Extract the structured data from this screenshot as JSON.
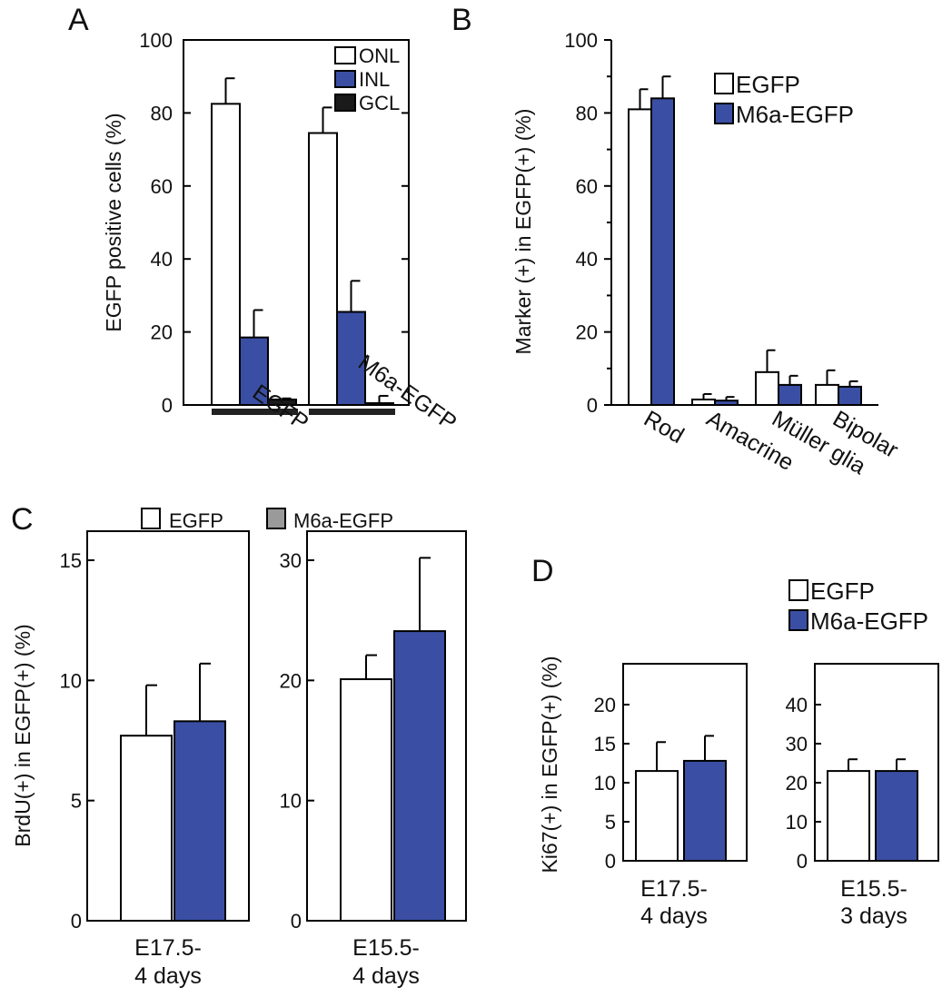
{
  "colors": {
    "egfp": "#ffffff",
    "m6a": "#3a4fa3",
    "gcl": "#1a1a1a",
    "stroke": "#000000",
    "gray_legend": "#9a9a9a"
  },
  "chart_data": [
    {
      "id": "A",
      "panel_label": "A",
      "type": "bar",
      "ylabel": "EGFP positive cells (%)",
      "ylim": [
        0,
        100
      ],
      "yticks": [
        "0",
        "20",
        "40",
        "60",
        "80",
        "100"
      ],
      "categories": [
        "EGFP",
        "M6a-EGFP"
      ],
      "series": [
        {
          "name": "ONL",
          "values": [
            82.5,
            74.5
          ],
          "errors": [
            7.0,
            7.0
          ]
        },
        {
          "name": "INL",
          "values": [
            18.5,
            25.5
          ],
          "errors": [
            7.5,
            8.5
          ]
        },
        {
          "name": "GCL",
          "values": [
            1.5,
            0.5
          ],
          "errors": [
            0.3,
            2.0
          ]
        }
      ],
      "legend_position": "top-right"
    },
    {
      "id": "B",
      "panel_label": "B",
      "type": "bar",
      "ylabel": "Marker (+) in EGFP(+)  (%)",
      "ylim": [
        0,
        100
      ],
      "yticks": [
        "0",
        "20",
        "40",
        "60",
        "80",
        "100"
      ],
      "categories": [
        "Rod",
        "Amacrine",
        "Müller glia",
        "Bipolar"
      ],
      "series": [
        {
          "name": "EGFP",
          "values": [
            81.0,
            1.5,
            9.0,
            5.5
          ],
          "errors": [
            5.5,
            1.5,
            6.0,
            4.0
          ]
        },
        {
          "name": "M6a-EGFP",
          "values": [
            84.0,
            1.2,
            5.5,
            5.0
          ],
          "errors": [
            6.0,
            1.0,
            2.5,
            1.5
          ]
        }
      ],
      "legend_position": "top-right"
    },
    {
      "id": "C",
      "panel_label": "C",
      "type": "bar",
      "ylabel": "BrdU(+) in EGFP(+)  (%)",
      "legend": [
        "EGFP",
        "M6a-EGFP"
      ],
      "legend_position": "top",
      "subplots": [
        {
          "category": "E17.5-\n4 days",
          "cat_line1": "E17.5-",
          "cat_line2": "4 days",
          "ylim": [
            0,
            15
          ],
          "yticks": [
            "0",
            "5",
            "10",
            "15"
          ],
          "values": [
            7.7,
            8.3
          ],
          "errors": [
            2.1,
            2.4
          ]
        },
        {
          "category": "E15.5-\n4 days",
          "cat_line1": "E15.5-",
          "cat_line2": "4 days",
          "ylim": [
            0,
            30
          ],
          "yticks": [
            "0",
            "10",
            "20",
            "30"
          ],
          "values": [
            20.1,
            24.1
          ],
          "errors": [
            2.0,
            6.1
          ]
        }
      ]
    },
    {
      "id": "D",
      "panel_label": "D",
      "type": "bar",
      "ylabel": "Ki67(+) in EGFP(+)  (%)",
      "legend": [
        "EGFP",
        "M6a-EGFP"
      ],
      "legend_position": "top-right",
      "subplots": [
        {
          "category": "E17.5-\n4 days",
          "cat_line1": "E17.5-",
          "cat_line2": "4 days",
          "ylim": [
            0,
            25
          ],
          "yticks": [
            "0",
            "5",
            "10",
            "15",
            "20"
          ],
          "values": [
            11.5,
            12.8
          ],
          "errors": [
            3.7,
            3.2
          ]
        },
        {
          "category": "E15.5-\n3 days",
          "cat_line1": "E15.5-",
          "cat_line2": "3 days",
          "ylim": [
            0,
            50
          ],
          "yticks": [
            "0",
            "10",
            "20",
            "30",
            "40"
          ],
          "values": [
            23.0,
            23.0
          ],
          "errors": [
            3.0,
            3.0
          ]
        }
      ]
    }
  ]
}
